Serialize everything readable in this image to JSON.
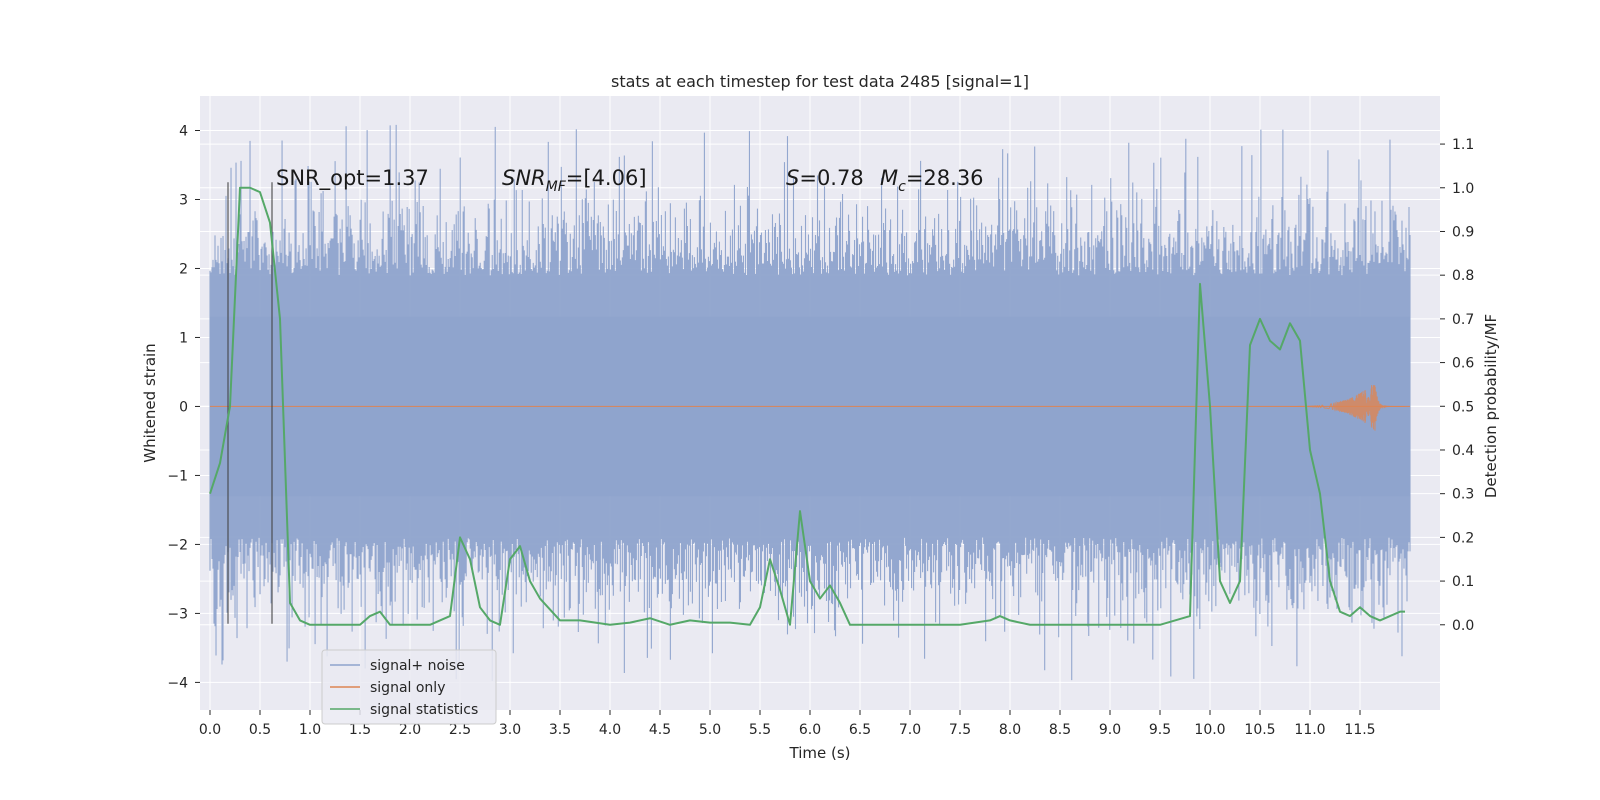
{
  "chart_data": {
    "type": "line",
    "title": "stats at each timestep for test data 2485 [signal=1]",
    "xlabel": "Time (s)",
    "ylabel_left": "Whitened strain",
    "ylabel_right": "Detection probability/MF",
    "xlim": [
      -0.1,
      12.3
    ],
    "ylim_left": [
      -4.4,
      4.5
    ],
    "ylim_right": [
      -0.195,
      1.21
    ],
    "x_ticks": [
      "0.0",
      "0.5",
      "1.0",
      "1.5",
      "2.0",
      "2.5",
      "3.0",
      "3.5",
      "4.0",
      "4.5",
      "5.0",
      "5.5",
      "6.0",
      "6.5",
      "7.0",
      "7.5",
      "8.0",
      "8.5",
      "9.0",
      "9.5",
      "10.0",
      "10.5",
      "11.0",
      "11.5"
    ],
    "y_ticks_left": [
      "4",
      "3",
      "2",
      "1",
      "0",
      "−1",
      "−2",
      "−3",
      "−4"
    ],
    "y_ticks_right": [
      "1.1",
      "1.0",
      "0.9",
      "0.8",
      "0.7",
      "0.6",
      "0.5",
      "0.4",
      "0.3",
      "0.2",
      "0.1",
      "0.0"
    ],
    "grid": true,
    "legend_position": "lower-left",
    "annotations": {
      "snr_opt": "SNR_opt=1.37",
      "snr_mf_pre": "SNR",
      "snr_mf_sub": "MF",
      "snr_mf_post": "=[4.06]",
      "s_name": "S",
      "s_value": "=0.78",
      "mc_name": "M",
      "mc_sub": "c",
      "mc_value": "=28.36"
    },
    "vertical_lines": [
      0.18,
      0.62
    ],
    "series": [
      {
        "name": "signal+ noise",
        "axis": "left",
        "color": "#8ea3cc",
        "t_range": [
          0.0,
          12.0
        ],
        "typical_band": [
          -1.3,
          1.3
        ],
        "peak_range": [
          -4.0,
          4.1
        ]
      },
      {
        "name": "signal only",
        "axis": "left",
        "color": "#dd8452",
        "t_range": [
          0.0,
          12.0
        ],
        "chirp_peak_time": 11.65,
        "chirp_peak_amplitude": 0.35
      },
      {
        "name": "signal statistics",
        "axis": "right",
        "color": "#55a868",
        "x": [
          0.0,
          0.1,
          0.2,
          0.3,
          0.4,
          0.5,
          0.6,
          0.7,
          0.8,
          0.9,
          1.0,
          1.2,
          1.5,
          1.6,
          1.7,
          1.8,
          2.0,
          2.2,
          2.4,
          2.5,
          2.6,
          2.7,
          2.8,
          2.9,
          3.0,
          3.1,
          3.2,
          3.3,
          3.5,
          3.7,
          4.0,
          4.2,
          4.4,
          4.6,
          4.8,
          5.0,
          5.2,
          5.4,
          5.5,
          5.6,
          5.7,
          5.8,
          5.9,
          6.0,
          6.1,
          6.2,
          6.3,
          6.4,
          6.5,
          6.7,
          7.0,
          7.5,
          7.8,
          7.9,
          8.0,
          8.2,
          8.5,
          9.0,
          9.5,
          9.8,
          9.9,
          10.0,
          10.1,
          10.2,
          10.3,
          10.4,
          10.5,
          10.6,
          10.7,
          10.8,
          10.9,
          11.0,
          11.1,
          11.2,
          11.3,
          11.4,
          11.5,
          11.6,
          11.7,
          11.8,
          11.9,
          11.95
        ],
        "y": [
          0.3,
          0.37,
          0.5,
          1.0,
          1.0,
          0.99,
          0.92,
          0.7,
          0.05,
          0.01,
          0.0,
          0.0,
          0.0,
          0.02,
          0.03,
          0.0,
          0.0,
          0.0,
          0.02,
          0.2,
          0.15,
          0.04,
          0.01,
          0.0,
          0.15,
          0.18,
          0.1,
          0.06,
          0.01,
          0.01,
          0.0,
          0.005,
          0.015,
          0.0,
          0.01,
          0.005,
          0.005,
          0.0,
          0.04,
          0.15,
          0.08,
          0.0,
          0.26,
          0.1,
          0.06,
          0.09,
          0.05,
          0.0,
          0.0,
          0.0,
          0.0,
          0.0,
          0.01,
          0.02,
          0.01,
          0.0,
          0.0,
          0.0,
          0.0,
          0.02,
          0.78,
          0.5,
          0.1,
          0.05,
          0.1,
          0.64,
          0.7,
          0.65,
          0.63,
          0.69,
          0.65,
          0.4,
          0.3,
          0.1,
          0.03,
          0.02,
          0.04,
          0.02,
          0.01,
          0.02,
          0.03,
          0.03
        ]
      }
    ]
  }
}
